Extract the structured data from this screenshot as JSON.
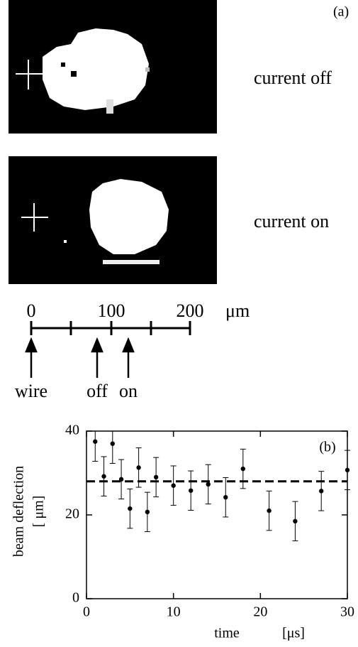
{
  "panel_a": {
    "label": "(a)",
    "caption_off": "current off",
    "caption_on": "current on",
    "scale_labels": [
      "0",
      "100",
      "200"
    ],
    "scale_unit": "μm",
    "arrow_labels": [
      "wire",
      "off",
      "on"
    ]
  },
  "chart_data": {
    "type": "scatter",
    "label": "(b)",
    "xlabel": "time",
    "xlabel_unit": "[μs]",
    "ylabel": "beam deflection",
    "ylabel_unit": "[ μm]",
    "xlim": [
      0,
      30
    ],
    "xticks": [
      0,
      10,
      20,
      30
    ],
    "ylim": [
      0,
      40
    ],
    "yticks": [
      0,
      20,
      40
    ],
    "series": [
      {
        "color": "#000000",
        "x": [
          1,
          2,
          3,
          4,
          5,
          6,
          7,
          8,
          10,
          12,
          14,
          16,
          18,
          21,
          24,
          27,
          30
        ],
        "values": [
          37.5,
          29.2,
          37,
          28.5,
          21.5,
          31.3,
          20.7,
          29,
          27,
          25.8,
          27.3,
          24.2,
          31,
          21,
          18.5,
          25.7,
          30.7
        ],
        "errors": [
          4.7,
          4.7,
          4.7,
          4.7,
          4.7,
          4.7,
          4.7,
          4.7,
          4.7,
          4.7,
          4.7,
          4.7,
          4.7,
          4.7,
          4.7,
          4.7,
          4.7
        ]
      }
    ],
    "reference_line": 28
  }
}
